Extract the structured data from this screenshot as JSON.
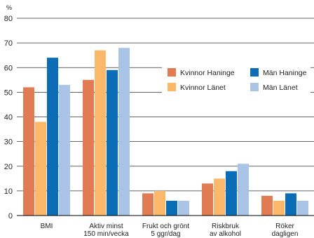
{
  "chart_data": {
    "type": "bar",
    "ylabel": "%",
    "ylim": [
      0,
      80
    ],
    "yticks": [
      0,
      10,
      20,
      30,
      40,
      50,
      60,
      70,
      80
    ],
    "grid": true,
    "legend_position": "center-right",
    "categories": [
      [
        "BMI"
      ],
      [
        "Aktiv minst",
        "150 min/vecka"
      ],
      [
        "Frukt och grönt",
        "5 ggr/dag"
      ],
      [
        "Riskbruk",
        "av alkohol"
      ],
      [
        "Röker",
        "dagligen"
      ]
    ],
    "series": [
      {
        "name": "Kvinnor Haninge",
        "color": "#e07b54",
        "values": [
          52,
          55,
          9,
          13,
          8
        ]
      },
      {
        "name": "Kvinnor Länet",
        "color": "#fbb86a",
        "values": [
          38,
          67,
          10,
          15,
          6
        ]
      },
      {
        "name": "Män Haninge",
        "color": "#0a6db5",
        "values": [
          64,
          59,
          6,
          18,
          9
        ]
      },
      {
        "name": "Män Länet",
        "color": "#a9c4e6",
        "values": [
          53,
          68,
          6,
          21,
          6
        ]
      }
    ]
  }
}
